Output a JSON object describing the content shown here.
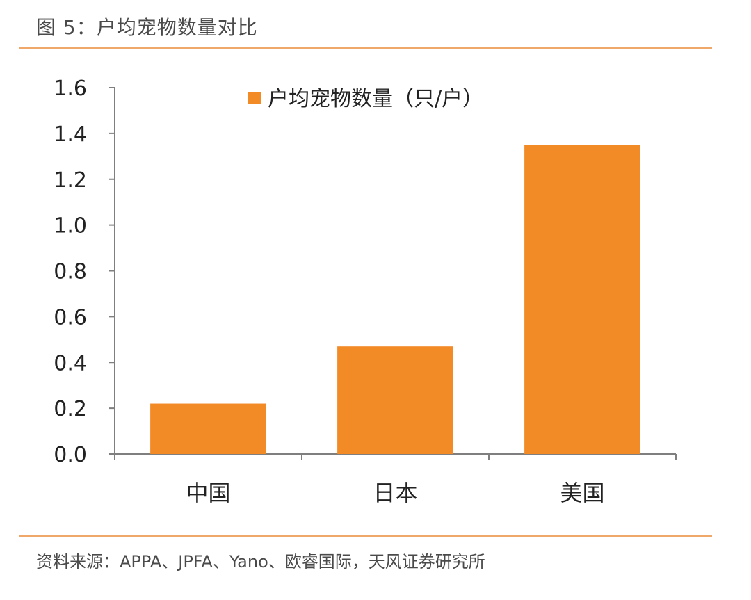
{
  "figure": {
    "title": "图 5：户均宠物数量对比",
    "source": "资料来源：APPA、JPFA、Yano、欧睿国际，天风证券研究所"
  },
  "colors": {
    "bar": "#F28A26",
    "rule": "#F0A76A",
    "axis": "#7F7F7F"
  },
  "chart_data": {
    "type": "bar",
    "categories": [
      "中国",
      "日本",
      "美国"
    ],
    "series": [
      {
        "name": "户均宠物数量（只/户）",
        "values": [
          0.22,
          0.47,
          1.35
        ]
      }
    ],
    "yticks": [
      "0.0",
      "0.2",
      "0.4",
      "0.6",
      "0.8",
      "1.0",
      "1.2",
      "1.4",
      "1.6"
    ],
    "ylim": [
      0,
      1.6
    ],
    "xlabel": "",
    "ylabel": "",
    "grid": false,
    "legend_position": "top-center"
  }
}
